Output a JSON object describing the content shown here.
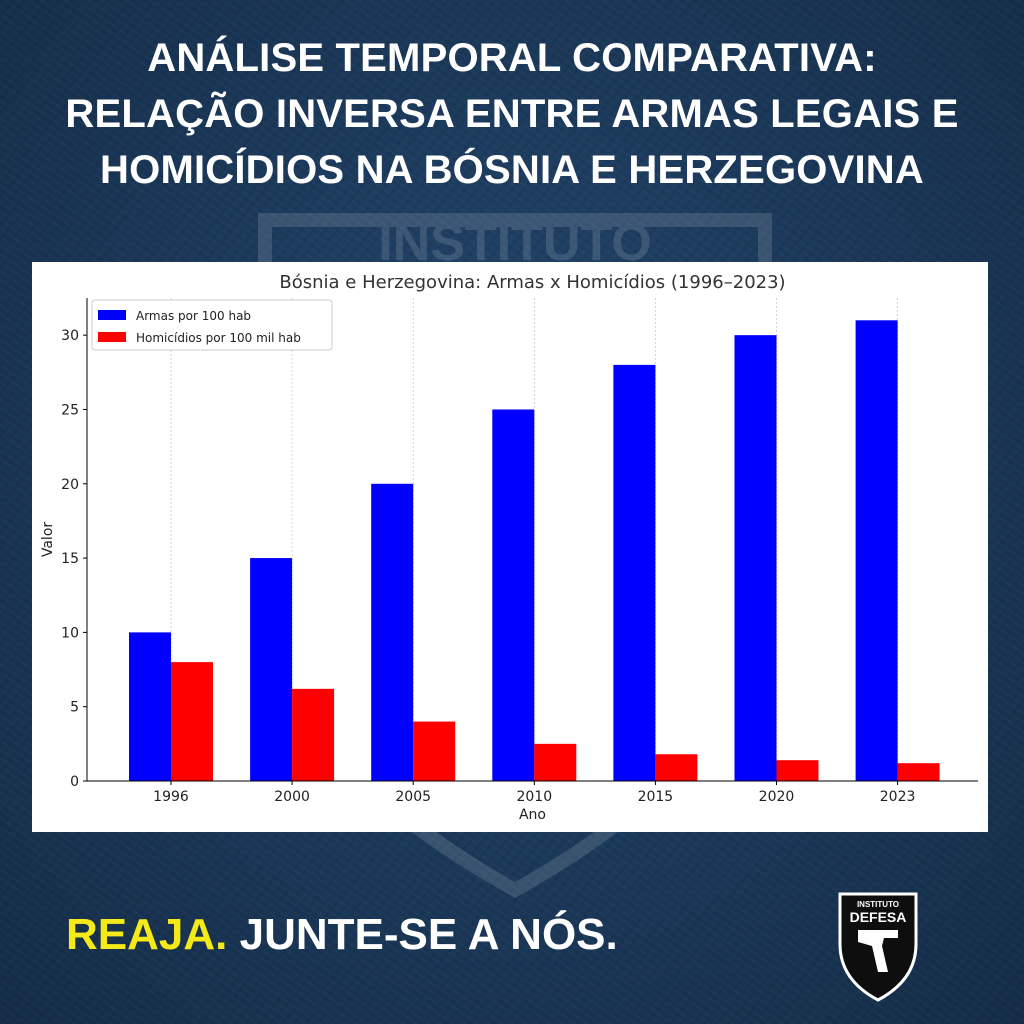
{
  "headline": {
    "lines": [
      "ANÁLISE TEMPORAL COMPARATIVA:",
      "RELAÇÃO INVERSA ENTRE ARMAS LEGAIS E",
      "HOMICÍDIOS NA BÓSNIA E HERZEGOVINA"
    ]
  },
  "watermark": {
    "text": "INSTITUTO"
  },
  "cta": {
    "highlight": "REAJA.",
    "rest": "JUNTE-SE A NÓS."
  },
  "logo": {
    "top_text": "INSTITUTO",
    "name": "DEFESA"
  },
  "colors": {
    "series_1": "#0000ff",
    "series_2": "#ff0000",
    "highlight": "#f5ea19"
  },
  "chart_data": {
    "type": "bar",
    "title": "Bósnia e Herzegovina: Armas x Homicídios (1996–2023)",
    "xlabel": "Ano",
    "ylabel": "Valor",
    "categories": [
      "1996",
      "2000",
      "2005",
      "2010",
      "2015",
      "2020",
      "2023"
    ],
    "series": [
      {
        "name": "Armas por 100 hab",
        "color": "#0000ff",
        "values": [
          10,
          15,
          20,
          25,
          28,
          30,
          31
        ]
      },
      {
        "name": "Homicídios por 100 mil hab",
        "color": "#ff0000",
        "values": [
          8,
          6.2,
          4,
          2.5,
          1.8,
          1.4,
          1.2
        ]
      }
    ],
    "ylim": [
      0,
      32.5
    ],
    "yticks": [
      "0",
      "5",
      "10",
      "15",
      "20",
      "25",
      "30"
    ],
    "grid": "vertical-dashed",
    "legend": "top-left"
  }
}
